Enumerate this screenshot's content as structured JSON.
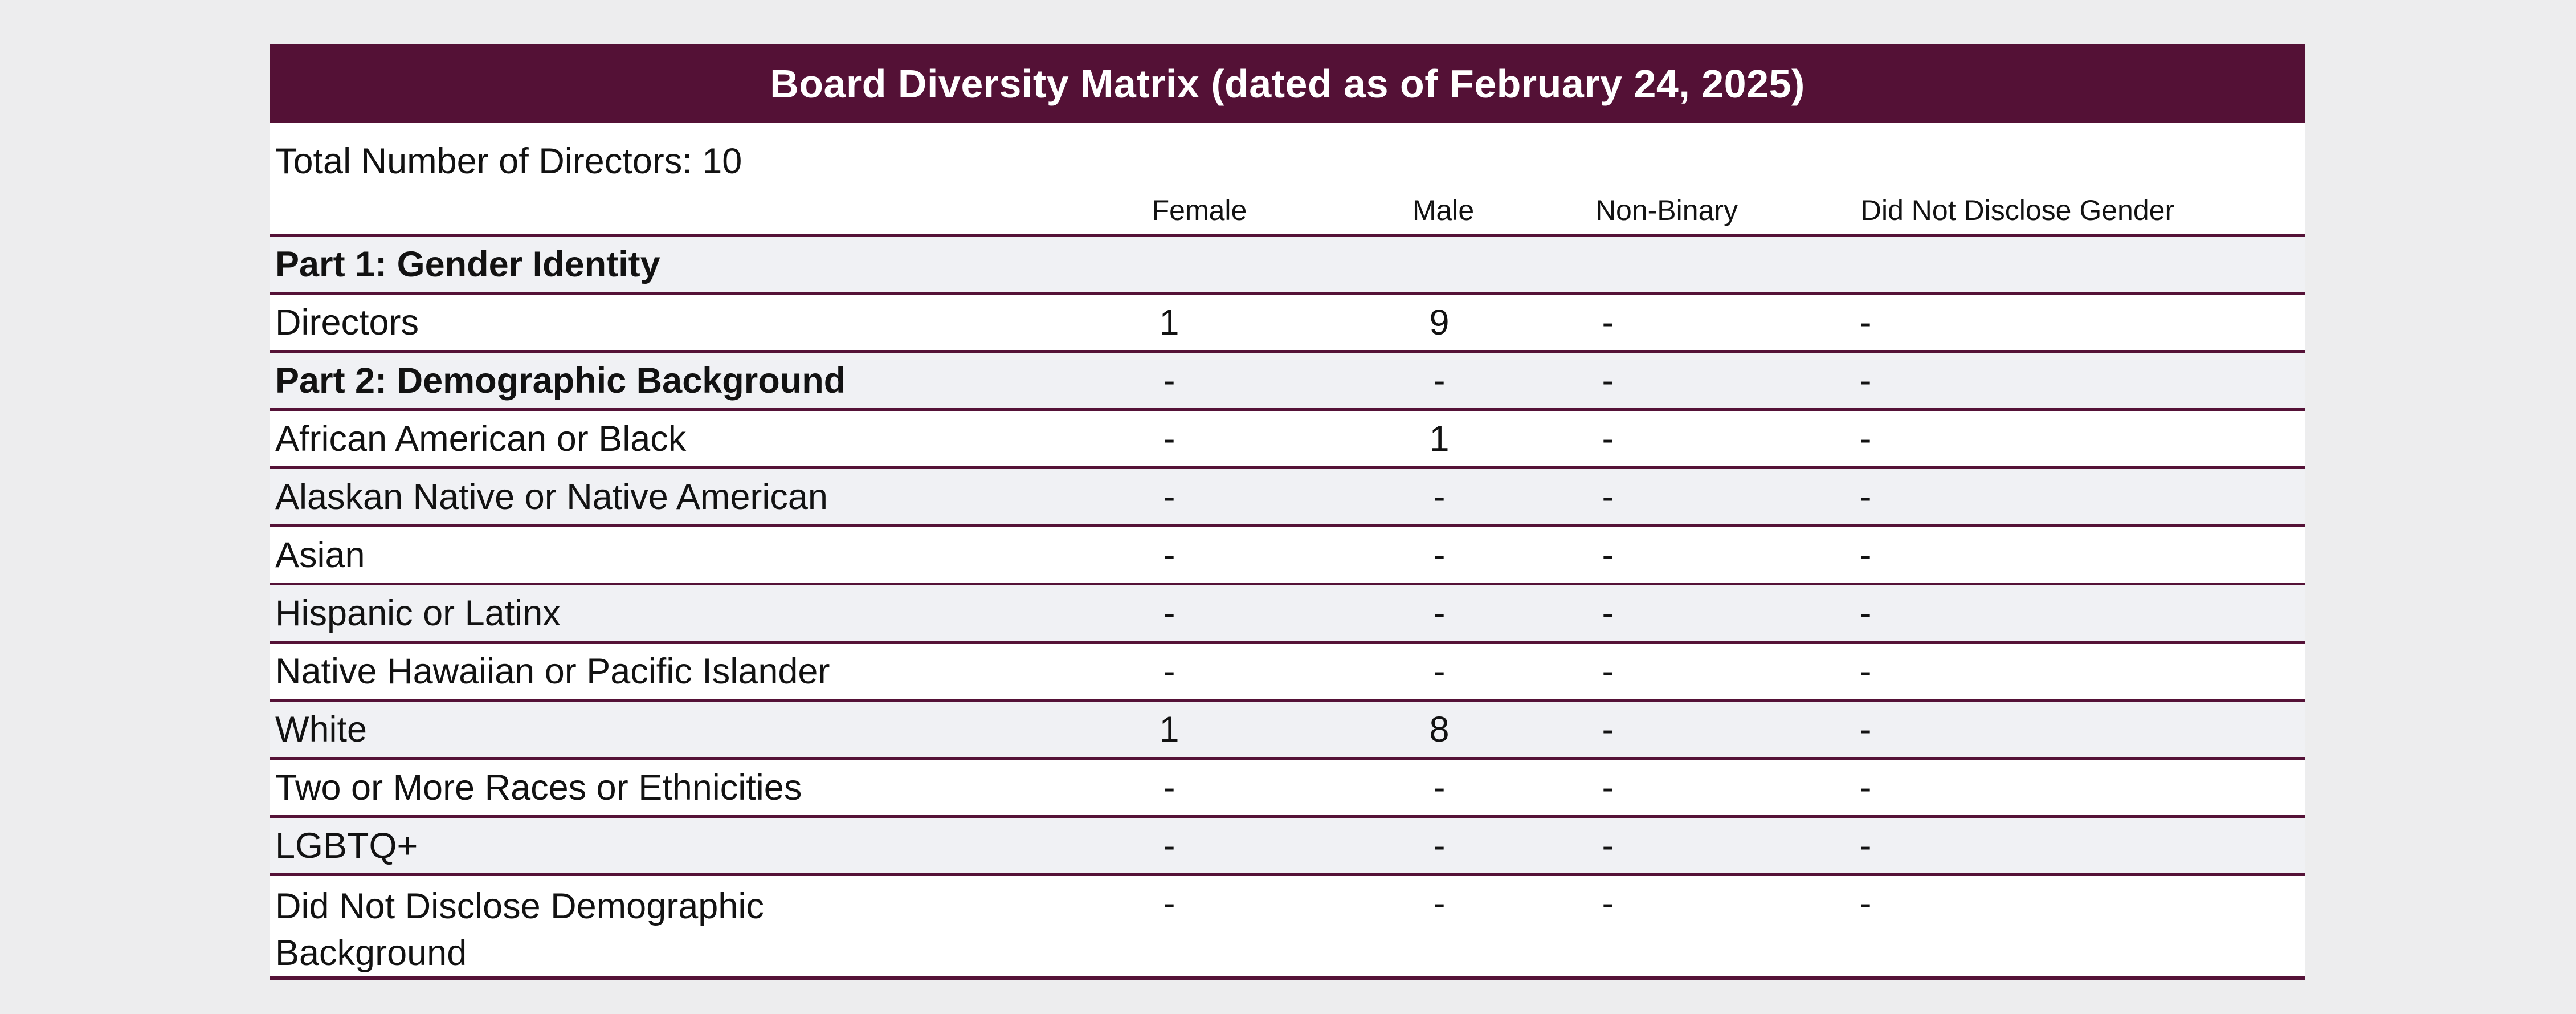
{
  "page": {
    "background": "#ededee"
  },
  "table": {
    "title": "Board Diversity Matrix (dated as of February 24, 2025)",
    "total_directors_label": "Total Number of Directors: 10",
    "columns": [
      "Female",
      "Male",
      "Non-Binary",
      "Did Not Disclose Gender"
    ],
    "rows": [
      {
        "label": "Part 1: Gender Identity",
        "bold": true,
        "values": [
          "",
          "",
          "",
          ""
        ]
      },
      {
        "label": "Directors",
        "bold": false,
        "values": [
          "1",
          "9",
          "-",
          "-"
        ]
      },
      {
        "label": "Part 2: Demographic Background",
        "bold": true,
        "values": [
          "-",
          "-",
          "-",
          "-"
        ]
      },
      {
        "label": "African American or Black",
        "bold": false,
        "values": [
          "-",
          "1",
          "-",
          "-"
        ]
      },
      {
        "label": "Alaskan Native or Native American",
        "bold": false,
        "values": [
          "-",
          "-",
          "-",
          "-"
        ]
      },
      {
        "label": "Asian",
        "bold": false,
        "values": [
          "-",
          "-",
          "-",
          "-"
        ]
      },
      {
        "label": "Hispanic or Latinx",
        "bold": false,
        "values": [
          "-",
          "-",
          "-",
          "-"
        ]
      },
      {
        "label": "Native Hawaiian or Pacific Islander",
        "bold": false,
        "values": [
          "-",
          "-",
          "-",
          "-"
        ]
      },
      {
        "label": "White",
        "bold": false,
        "values": [
          "1",
          "8",
          "-",
          "-"
        ]
      },
      {
        "label": "Two or More Races or Ethnicities",
        "bold": false,
        "values": [
          "-",
          "-",
          "-",
          "-"
        ]
      },
      {
        "label": "LGBTQ+",
        "bold": false,
        "values": [
          "-",
          "-",
          "-",
          "-"
        ]
      },
      {
        "label": "Did Not Disclose Demographic Background",
        "bold": false,
        "values": [
          "-",
          "-",
          "-",
          "-"
        ]
      }
    ],
    "colors": {
      "title_bar_bg": "#541136",
      "title_text": "#ffffff",
      "border": "#551237",
      "alt_row_bg": "#f0f1f4",
      "body_bg": "#ffffff",
      "text": "#121212"
    }
  }
}
